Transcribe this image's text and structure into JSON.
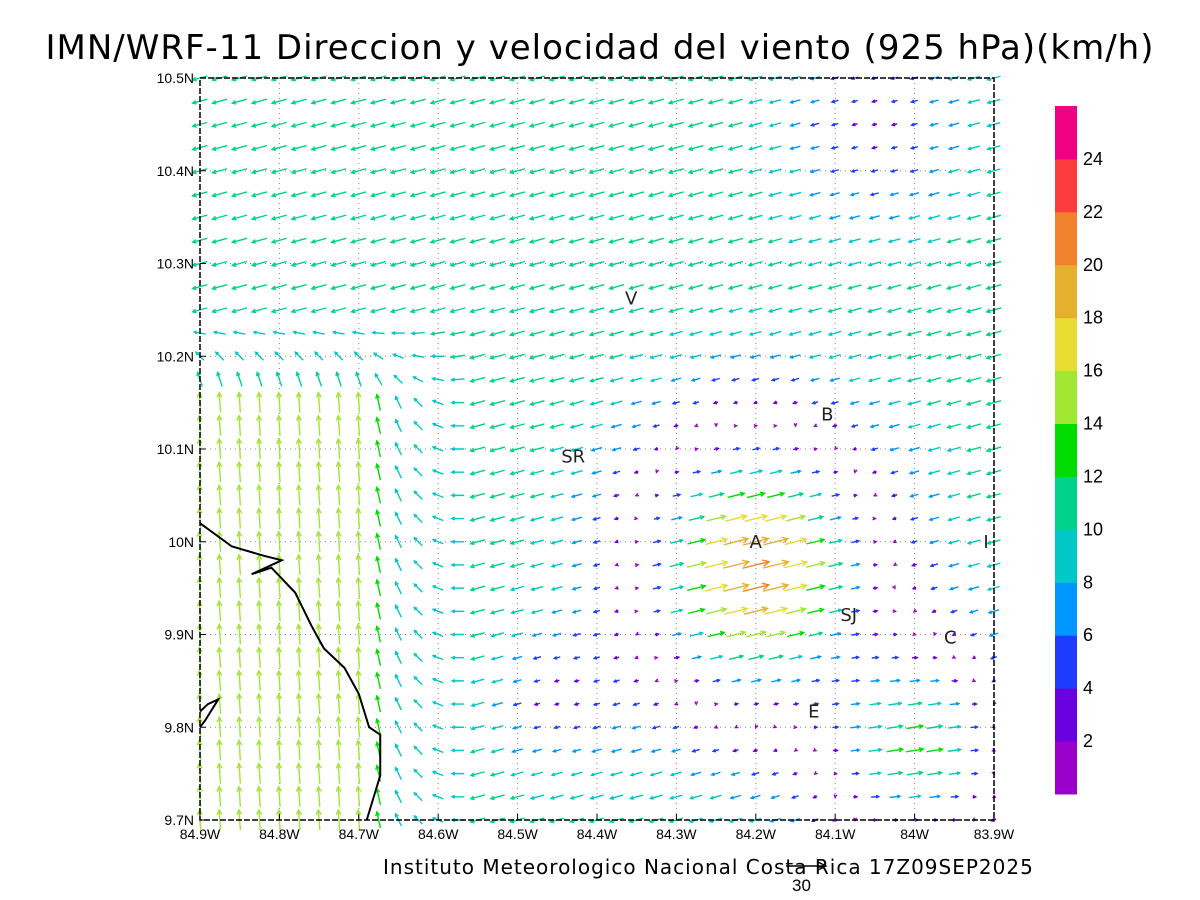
{
  "title": "IMN/WRF-11 Direccion y velocidad del viento (925 hPa)(km/h)",
  "credit": "Instituto Meteorologico Nacional Costa Rica 17Z09SEP2025",
  "reference_vector": {
    "label": "30",
    "speed_kmh": 30
  },
  "axes": {
    "lat_labels": [
      "10.5N",
      "10.4N",
      "10.3N",
      "10.2N",
      "10.1N",
      "10N",
      "9.9N",
      "9.8N",
      "9.7N"
    ],
    "lon_labels": [
      "84.9W",
      "84.8W",
      "84.7W",
      "84.6W",
      "84.5W",
      "84.4W",
      "84.3W",
      "84.2W",
      "84.1W",
      "84W",
      "83.9W"
    ],
    "lat_range": [
      9.7,
      10.5
    ],
    "lon_range": [
      -84.9,
      -83.9
    ],
    "grid": "dotted"
  },
  "colorbar": {
    "labels": [
      "2",
      "4",
      "6",
      "8",
      "10",
      "12",
      "14",
      "16",
      "18",
      "20",
      "22",
      "24"
    ],
    "colors": [
      "#9900cc",
      "#6a00e0",
      "#1e3cff",
      "#0096ff",
      "#00c8c8",
      "#00d28c",
      "#00dc00",
      "#a0e632",
      "#e6dc32",
      "#e6af2d",
      "#f0822d",
      "#fa3c3c",
      "#f00082"
    ]
  },
  "places": [
    {
      "code": "V",
      "lon": -84.357,
      "lat": 10.262
    },
    {
      "code": "B",
      "lon": -84.11,
      "lat": 10.137
    },
    {
      "code": "SR",
      "lon": -84.43,
      "lat": 10.092
    },
    {
      "code": "A",
      "lon": -84.2,
      "lat": 10.0
    },
    {
      "code": "I",
      "lon": -83.91,
      "lat": 10.0
    },
    {
      "code": "SJ",
      "lon": -84.083,
      "lat": 9.921
    },
    {
      "code": "C",
      "lon": -83.955,
      "lat": 9.897
    },
    {
      "code": "E",
      "lon": -84.127,
      "lat": 9.817
    }
  ],
  "coastline": [
    [
      [
        -84.9,
        10.02
      ],
      [
        -84.86,
        9.995
      ],
      [
        -84.82,
        9.985
      ],
      [
        -84.797,
        9.98
      ],
      [
        -84.835,
        9.965
      ],
      [
        -84.81,
        9.972
      ],
      [
        -84.78,
        9.945
      ],
      [
        -84.76,
        9.91
      ],
      [
        -84.744,
        9.885
      ],
      [
        -84.718,
        9.864
      ],
      [
        -84.7,
        9.836
      ],
      [
        -84.687,
        9.8
      ],
      [
        -84.673,
        9.792
      ],
      [
        -84.673,
        9.748
      ],
      [
        -84.69,
        9.7
      ]
    ],
    [
      [
        -84.9,
        9.817
      ],
      [
        -84.89,
        9.825
      ],
      [
        -84.877,
        9.83
      ],
      [
        -84.893,
        9.808
      ],
      [
        -84.9,
        9.8
      ]
    ]
  ],
  "wind_field": {
    "units": "km/h",
    "lon_start": -84.9,
    "lon_step": 0.025,
    "ncols": 41,
    "lat_start": 9.7,
    "lat_step": 0.025,
    "nrows": 33,
    "flow_regimes": [
      "northeasterly trades in north",
      "southerly flow in west",
      "westerly/southwesterly flow through central valley"
    ]
  }
}
